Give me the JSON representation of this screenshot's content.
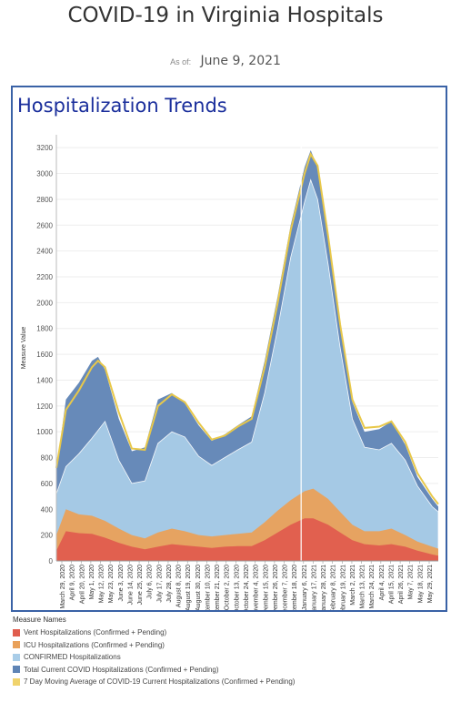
{
  "header": {
    "title": "COVID-19 in Virginia Hospitals",
    "asof_label": "As of:",
    "asof_date": "June 9, 2021"
  },
  "panel": {
    "title": "Hospitalization Trends"
  },
  "legend": {
    "title": "Measure Names",
    "items": [
      {
        "label": "Vent Hospitalizations (Confirmed + Pending)",
        "color": "#e05d4e"
      },
      {
        "label": "ICU Hospitalizations (Confirmed + Pending)",
        "color": "#e9a15a"
      },
      {
        "label": "CONFIRMED Hospitalizations",
        "color": "#a9cde8"
      },
      {
        "label": "Total Current COVID Hospitalizations (Confirmed + Pending)",
        "color": "#5f84b5"
      },
      {
        "label": "7 Day Moving Average of COVID-19 Current Hospitalizations (Confirmed + Pending)",
        "color": "#f0d36c"
      }
    ]
  },
  "chart_data": {
    "type": "area",
    "ylabel": "Measure Value",
    "ylim": [
      0,
      3300
    ],
    "yticks": [
      0,
      200,
      400,
      600,
      800,
      1000,
      1200,
      1400,
      1600,
      1800,
      2000,
      2200,
      2400,
      2600,
      2800,
      3000,
      3200
    ],
    "xlim": [
      "2020-03-25",
      "2021-06-08"
    ],
    "reference_line_date": "2021-01-01",
    "xticks": [
      "March 29, 2020",
      "April 9, 2020",
      "April 20, 2020",
      "May 1, 2020",
      "May 12, 2020",
      "May 23, 2020",
      "June 3, 2020",
      "June 14, 2020",
      "June 25, 2020",
      "July 6, 2020",
      "July 17, 2020",
      "July 28, 2020",
      "August 8, 2020",
      "August 19, 2020",
      "August 30, 2020",
      "September 10, 2020",
      "September 21, 2020",
      "October 2, 2020",
      "October 13, 2020",
      "October 24, 2020",
      "November 4, 2020",
      "November 15, 2020",
      "November 26, 2020",
      "December 7, 2020",
      "December 18, 2020",
      "January 6, 2021",
      "January 17, 2021",
      "January 28, 2021",
      "February 8, 2021",
      "February 19, 2021",
      "March 2, 2021",
      "March 13, 2021",
      "March 24, 2021",
      "April 4, 2021",
      "April 15, 2021",
      "April 26, 2021",
      "May 7, 2021",
      "May 18, 2021",
      "May 29, 2021"
    ],
    "series": [
      {
        "name": "Vent Hospitalizations (Confirmed + Pending)",
        "color": "#e05d4e",
        "points": [
          [
            "2020-03-25",
            80
          ],
          [
            "2020-04-05",
            230
          ],
          [
            "2020-04-20",
            215
          ],
          [
            "2020-05-05",
            210
          ],
          [
            "2020-05-20",
            180
          ],
          [
            "2020-06-05",
            140
          ],
          [
            "2020-06-20",
            110
          ],
          [
            "2020-07-05",
            90
          ],
          [
            "2020-07-20",
            110
          ],
          [
            "2020-08-05",
            130
          ],
          [
            "2020-08-20",
            120
          ],
          [
            "2020-09-05",
            110
          ],
          [
            "2020-09-20",
            100
          ],
          [
            "2020-10-05",
            110
          ],
          [
            "2020-10-20",
            115
          ],
          [
            "2020-11-05",
            115
          ],
          [
            "2020-11-20",
            160
          ],
          [
            "2020-12-05",
            220
          ],
          [
            "2020-12-20",
            280
          ],
          [
            "2021-01-05",
            330
          ],
          [
            "2021-01-15",
            330
          ],
          [
            "2021-02-01",
            280
          ],
          [
            "2021-02-15",
            220
          ],
          [
            "2021-03-01",
            160
          ],
          [
            "2021-03-15",
            130
          ],
          [
            "2021-04-01",
            120
          ],
          [
            "2021-04-15",
            130
          ],
          [
            "2021-05-01",
            110
          ],
          [
            "2021-05-15",
            80
          ],
          [
            "2021-06-01",
            50
          ],
          [
            "2021-06-08",
            40
          ]
        ]
      },
      {
        "name": "ICU Hospitalizations (Confirmed + Pending)",
        "color": "#e9a15a",
        "points": [
          [
            "2020-03-25",
            200
          ],
          [
            "2020-04-05",
            400
          ],
          [
            "2020-04-20",
            360
          ],
          [
            "2020-05-05",
            350
          ],
          [
            "2020-05-20",
            310
          ],
          [
            "2020-06-05",
            250
          ],
          [
            "2020-06-20",
            200
          ],
          [
            "2020-07-05",
            175
          ],
          [
            "2020-07-20",
            220
          ],
          [
            "2020-08-05",
            250
          ],
          [
            "2020-08-20",
            230
          ],
          [
            "2020-09-05",
            200
          ],
          [
            "2020-09-20",
            190
          ],
          [
            "2020-10-05",
            200
          ],
          [
            "2020-10-20",
            210
          ],
          [
            "2020-11-05",
            220
          ],
          [
            "2020-11-20",
            300
          ],
          [
            "2020-12-05",
            390
          ],
          [
            "2020-12-20",
            470
          ],
          [
            "2021-01-05",
            540
          ],
          [
            "2021-01-15",
            560
          ],
          [
            "2021-02-01",
            480
          ],
          [
            "2021-02-15",
            380
          ],
          [
            "2021-03-01",
            280
          ],
          [
            "2021-03-15",
            230
          ],
          [
            "2021-04-01",
            230
          ],
          [
            "2021-04-15",
            250
          ],
          [
            "2021-05-01",
            200
          ],
          [
            "2021-05-15",
            150
          ],
          [
            "2021-06-01",
            110
          ],
          [
            "2021-06-08",
            95
          ]
        ]
      },
      {
        "name": "CONFIRMED Hospitalizations",
        "color": "#a9cde8",
        "points": [
          [
            "2020-03-25",
            520
          ],
          [
            "2020-04-05",
            730
          ],
          [
            "2020-04-20",
            830
          ],
          [
            "2020-05-05",
            950
          ],
          [
            "2020-05-20",
            1080
          ],
          [
            "2020-06-05",
            780
          ],
          [
            "2020-06-20",
            600
          ],
          [
            "2020-07-05",
            620
          ],
          [
            "2020-07-20",
            910
          ],
          [
            "2020-08-05",
            1000
          ],
          [
            "2020-08-20",
            960
          ],
          [
            "2020-09-05",
            810
          ],
          [
            "2020-09-20",
            740
          ],
          [
            "2020-10-05",
            800
          ],
          [
            "2020-10-20",
            860
          ],
          [
            "2020-11-05",
            920
          ],
          [
            "2020-11-20",
            1300
          ],
          [
            "2020-12-05",
            1800
          ],
          [
            "2020-12-20",
            2350
          ],
          [
            "2021-01-05",
            2780
          ],
          [
            "2021-01-12",
            2950
          ],
          [
            "2021-01-20",
            2800
          ],
          [
            "2021-02-01",
            2300
          ],
          [
            "2021-02-15",
            1650
          ],
          [
            "2021-03-01",
            1100
          ],
          [
            "2021-03-15",
            880
          ],
          [
            "2021-04-01",
            860
          ],
          [
            "2021-04-15",
            910
          ],
          [
            "2021-05-01",
            780
          ],
          [
            "2021-05-15",
            580
          ],
          [
            "2021-06-01",
            420
          ],
          [
            "2021-06-08",
            380
          ]
        ]
      },
      {
        "name": "Total Current COVID Hospitalizations (Confirmed + Pending)",
        "color": "#5f84b5",
        "points": [
          [
            "2020-03-25",
            700
          ],
          [
            "2020-04-05",
            1250
          ],
          [
            "2020-04-20",
            1380
          ],
          [
            "2020-05-05",
            1550
          ],
          [
            "2020-05-12",
            1580
          ],
          [
            "2020-05-20",
            1480
          ],
          [
            "2020-06-05",
            1100
          ],
          [
            "2020-06-20",
            850
          ],
          [
            "2020-07-05",
            880
          ],
          [
            "2020-07-20",
            1250
          ],
          [
            "2020-08-05",
            1300
          ],
          [
            "2020-08-20",
            1220
          ],
          [
            "2020-09-05",
            1050
          ],
          [
            "2020-09-20",
            930
          ],
          [
            "2020-10-05",
            980
          ],
          [
            "2020-10-20",
            1050
          ],
          [
            "2020-11-05",
            1120
          ],
          [
            "2020-11-20",
            1550
          ],
          [
            "2020-12-05",
            2050
          ],
          [
            "2020-12-20",
            2600
          ],
          [
            "2021-01-05",
            3050
          ],
          [
            "2021-01-12",
            3180
          ],
          [
            "2021-01-20",
            3050
          ],
          [
            "2021-02-01",
            2500
          ],
          [
            "2021-02-15",
            1800
          ],
          [
            "2021-03-01",
            1230
          ],
          [
            "2021-03-15",
            1000
          ],
          [
            "2021-04-01",
            1020
          ],
          [
            "2021-04-15",
            1080
          ],
          [
            "2021-05-01",
            900
          ],
          [
            "2021-05-15",
            650
          ],
          [
            "2021-06-01",
            480
          ],
          [
            "2021-06-08",
            420
          ]
        ]
      },
      {
        "name": "7 Day Moving Average of COVID-19 Current Hospitalizations (Confirmed + Pending)",
        "color": "#e8c84a",
        "points": [
          [
            "2020-03-25",
            720
          ],
          [
            "2020-04-05",
            1170
          ],
          [
            "2020-04-20",
            1320
          ],
          [
            "2020-05-05",
            1500
          ],
          [
            "2020-05-12",
            1550
          ],
          [
            "2020-05-20",
            1500
          ],
          [
            "2020-06-05",
            1150
          ],
          [
            "2020-06-20",
            870
          ],
          [
            "2020-07-05",
            860
          ],
          [
            "2020-07-20",
            1200
          ],
          [
            "2020-08-05",
            1290
          ],
          [
            "2020-08-20",
            1230
          ],
          [
            "2020-09-05",
            1070
          ],
          [
            "2020-09-20",
            940
          ],
          [
            "2020-10-05",
            970
          ],
          [
            "2020-10-20",
            1040
          ],
          [
            "2020-11-05",
            1100
          ],
          [
            "2020-11-20",
            1500
          ],
          [
            "2020-12-05",
            2000
          ],
          [
            "2020-12-20",
            2560
          ],
          [
            "2021-01-05",
            3000
          ],
          [
            "2021-01-12",
            3150
          ],
          [
            "2021-01-20",
            3060
          ],
          [
            "2021-02-01",
            2520
          ],
          [
            "2021-02-15",
            1830
          ],
          [
            "2021-03-01",
            1250
          ],
          [
            "2021-03-15",
            1030
          ],
          [
            "2021-04-01",
            1040
          ],
          [
            "2021-04-15",
            1080
          ],
          [
            "2021-05-01",
            920
          ],
          [
            "2021-05-15",
            680
          ],
          [
            "2021-06-01",
            500
          ],
          [
            "2021-06-08",
            440
          ]
        ]
      }
    ]
  }
}
